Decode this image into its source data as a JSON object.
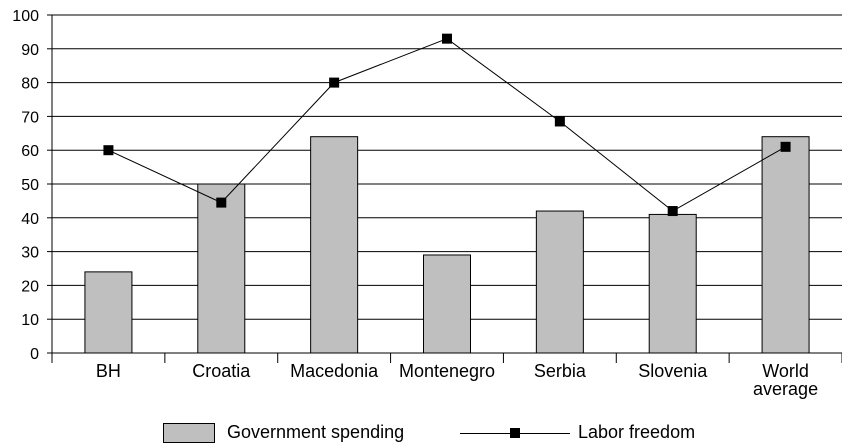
{
  "chart_data": {
    "type": "bar",
    "categories": [
      "BH",
      "Croatia",
      "Macedonia",
      "Montenegro",
      "Serbia",
      "Slovenia",
      "World average"
    ],
    "category_lines": [
      [
        "BH"
      ],
      [
        "Croatia"
      ],
      [
        "Macedonia"
      ],
      [
        "Montenegro"
      ],
      [
        "Serbia"
      ],
      [
        "Slovenia"
      ],
      [
        "World",
        "average"
      ]
    ],
    "series": [
      {
        "name": "Government spending",
        "type": "bar",
        "values": [
          24,
          50,
          64,
          29,
          42,
          41,
          64
        ],
        "color": "#bfbfbf"
      },
      {
        "name": "Labor freedom",
        "type": "line",
        "values": [
          60,
          44.5,
          80,
          93,
          68.5,
          42,
          61
        ],
        "color": "#000000",
        "marker": "square"
      }
    ],
    "ylim": [
      0,
      100
    ],
    "yticks": [
      "0",
      "10",
      "20",
      "30",
      "40",
      "50",
      "60",
      "70",
      "80",
      "90",
      "100"
    ],
    "grid": true,
    "legend": "bottom"
  }
}
